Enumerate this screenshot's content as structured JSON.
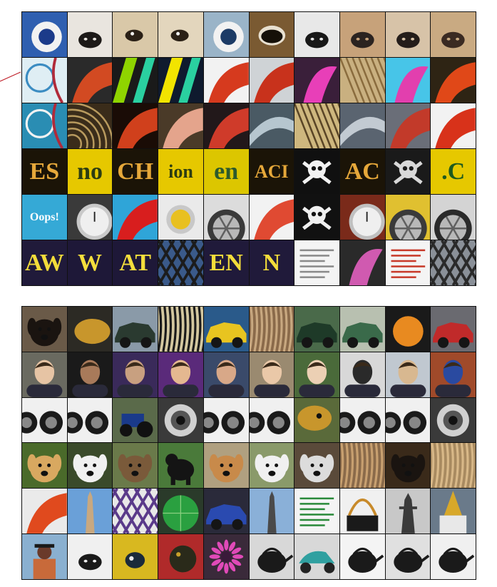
{
  "top_grid": {
    "rows": [
      [
        {
          "icon": "blue-eye-spot-icon",
          "bg": "#2f5fb0",
          "fg": "#f4f4f4"
        },
        {
          "icon": "dog-snout-icon",
          "bg": "#e9e5df",
          "fg": "#1d1a18"
        },
        {
          "icon": "dog-eye-icon",
          "bg": "#d9c8a8",
          "fg": "#2a2016"
        },
        {
          "icon": "dog-eye-icon",
          "bg": "#e3d6bd",
          "fg": "#2a2016"
        },
        {
          "icon": "blue-eye-spot-icon",
          "bg": "#9ab4c8",
          "fg": "#1c3b66"
        },
        {
          "icon": "open-mouth-icon",
          "bg": "#7a5a32",
          "fg": "#151008"
        },
        {
          "icon": "dog-nose-icon",
          "bg": "#e8e8e8",
          "fg": "#181818"
        },
        {
          "icon": "dog-nose-icon",
          "bg": "#c7a27a",
          "fg": "#2b2320"
        },
        {
          "icon": "dog-nose-icon",
          "bg": "#d7c3a8",
          "fg": "#241d1a"
        },
        {
          "icon": "dog-nose-icon",
          "bg": "#c9aa82",
          "fg": "#3a2a22"
        }
      ],
      [
        {
          "icon": "clock-face-icon",
          "bg": "#dfeef4",
          "fg": "#3b8cc2"
        },
        {
          "icon": "red-curve-icon",
          "bg": "#2a2a2a",
          "fg": "#d24a22"
        },
        {
          "icon": "color-stripes-icon",
          "bg": "#1a1a1a",
          "fg": "#8fd400"
        },
        {
          "icon": "color-stripes-icon",
          "bg": "#0f1a2e",
          "fg": "#f2e400"
        },
        {
          "icon": "red-curve-icon",
          "bg": "#f2f2f2",
          "fg": "#d63a1e"
        },
        {
          "icon": "red-curve-icon",
          "bg": "#cfd3d6",
          "fg": "#c8321c"
        },
        {
          "icon": "pink-petal-icon",
          "bg": "#3a1f3a",
          "fg": "#e83fb8"
        },
        {
          "icon": "straw-texture-icon",
          "bg": "#c9b080",
          "fg": "#8a6c3e"
        },
        {
          "icon": "pink-petal-icon",
          "bg": "#47c5e8",
          "fg": "#e23fae"
        },
        {
          "icon": "red-curve-icon",
          "bg": "#2e2414",
          "fg": "#e04818"
        }
      ],
      [
        {
          "icon": "clock-face-icon",
          "bg": "#2a8db3",
          "fg": "#f2f2f2"
        },
        {
          "icon": "coil-texture-icon",
          "bg": "#3a2c1a",
          "fg": "#b89a5e"
        },
        {
          "icon": "red-curve-icon",
          "bg": "#1a0c06",
          "fg": "#d0401c"
        },
        {
          "icon": "red-curve-icon",
          "bg": "#4a3a28",
          "fg": "#e4a48c"
        },
        {
          "icon": "red-curve-icon",
          "bg": "#22181a",
          "fg": "#cf3b2a"
        },
        {
          "icon": "metal-curve-icon",
          "bg": "#4a5a64",
          "fg": "#b6c6cf"
        },
        {
          "icon": "straw-texture-icon",
          "bg": "#ceb77e",
          "fg": "#5a4526"
        },
        {
          "icon": "metal-curve-icon",
          "bg": "#5a6470",
          "fg": "#c2cad2"
        },
        {
          "icon": "red-curve-icon",
          "bg": "#6a6e78",
          "fg": "#c23a2a"
        },
        {
          "icon": "red-curve-icon",
          "bg": "#f2f2f2",
          "fg": "#d8321a"
        }
      ],
      [
        {
          "icon": "letters-icon",
          "text": "ES",
          "bg": "#1b1407",
          "fg": "#e6a83a"
        },
        {
          "icon": "letters-icon",
          "text": "no",
          "bg": "#e6c800",
          "fg": "#2c3d12"
        },
        {
          "icon": "letters-icon",
          "text": "CH",
          "bg": "#1b1407",
          "fg": "#e6a83a"
        },
        {
          "icon": "letters-icon",
          "text": "ion",
          "bg": "#e6c800",
          "fg": "#2c3d12"
        },
        {
          "icon": "letters-icon",
          "text": "en",
          "bg": "#dcc600",
          "fg": "#2c5a2c"
        },
        {
          "icon": "letters-icon",
          "text": "ACI",
          "bg": "#1b1407",
          "fg": "#e6a83a"
        },
        {
          "icon": "skull-crossbones-icon",
          "bg": "#101010",
          "fg": "#f2f2f2"
        },
        {
          "icon": "letters-icon",
          "text": "AC",
          "bg": "#1b1407",
          "fg": "#e6a83a"
        },
        {
          "icon": "skull-crossbones-icon",
          "bg": "#1a1a1a",
          "fg": "#d8d8d8"
        },
        {
          "icon": "letters-icon",
          "text": ".C",
          "bg": "#e6c800",
          "fg": "#1e5a1e"
        }
      ],
      [
        {
          "icon": "letters-icon",
          "text": "Oops!",
          "bg": "#35a9d6",
          "fg": "#ffffff"
        },
        {
          "icon": "watch-face-icon",
          "bg": "#3a3a3a",
          "fg": "#c9c9c9"
        },
        {
          "icon": "red-curve-icon",
          "bg": "#2fa5d8",
          "fg": "#d81e1e"
        },
        {
          "icon": "yellow-disc-icon",
          "bg": "#eaeaea",
          "fg": "#e8c020"
        },
        {
          "icon": "wheel-rim-icon",
          "bg": "#dcdcdc",
          "fg": "#3a3a3a"
        },
        {
          "icon": "red-curve-icon",
          "bg": "#f2f2f2",
          "fg": "#e04a32"
        },
        {
          "icon": "skull-crossbones-icon",
          "bg": "#111111",
          "fg": "#f0f0f0"
        },
        {
          "icon": "watch-face-icon",
          "bg": "#7a2a1a",
          "fg": "#c0c0c0"
        },
        {
          "icon": "wheel-rim-icon",
          "bg": "#e0c030",
          "fg": "#3a3a3a"
        },
        {
          "icon": "wheel-rim-icon",
          "bg": "#d4d4d4",
          "fg": "#2a2a2a"
        }
      ],
      [
        {
          "icon": "letters-icon",
          "text": "AW",
          "bg": "#201a3a",
          "fg": "#f2dc3a"
        },
        {
          "icon": "letters-icon",
          "text": "W",
          "bg": "#1e1838",
          "fg": "#f4de3c"
        },
        {
          "icon": "letters-icon",
          "text": "AT",
          "bg": "#1e1838",
          "fg": "#f4de3c"
        },
        {
          "icon": "lattice-icon",
          "bg": "#3a5a8a",
          "fg": "#1c1c1c"
        },
        {
          "icon": "letters-icon",
          "text": "EN",
          "bg": "#201a3a",
          "fg": "#f2dc3a"
        },
        {
          "icon": "letters-icon",
          "text": "N",
          "bg": "#201a3a",
          "fg": "#f2dc3a"
        },
        {
          "icon": "text-block-icon",
          "bg": "#f4f4f4",
          "fg": "#8a8a8a"
        },
        {
          "icon": "pink-petal-icon",
          "bg": "#2a2a2a",
          "fg": "#d05ab0"
        },
        {
          "icon": "text-block-icon",
          "bg": "#f4f4f4",
          "fg": "#c83a2a"
        },
        {
          "icon": "lattice-icon",
          "bg": "#8a9098",
          "fg": "#2a2a2a"
        }
      ]
    ]
  },
  "bottom_grid": {
    "rows": [
      [
        {
          "icon": "dog-head-icon",
          "bg": "#6a5a48",
          "fg": "#1a1410"
        },
        {
          "icon": "gold-object-icon",
          "bg": "#2c2a24",
          "fg": "#c8962c"
        },
        {
          "icon": "car-side-icon",
          "bg": "#8a9aa8",
          "fg": "#2a3a30"
        },
        {
          "icon": "fur-texture-icon",
          "bg": "#d4c8a0",
          "fg": "#1a1a1a"
        },
        {
          "icon": "car-side-icon",
          "bg": "#2a5a8a",
          "fg": "#e8c420"
        },
        {
          "icon": "fur-texture-icon",
          "bg": "#8a6a4a",
          "fg": "#c8a880"
        },
        {
          "icon": "car-side-icon",
          "bg": "#4a6a4a",
          "fg": "#1e3a28"
        },
        {
          "icon": "car-side-icon",
          "bg": "#b8c0b0",
          "fg": "#3a6a4a"
        },
        {
          "icon": "fruit-icon",
          "bg": "#1a1a1a",
          "fg": "#e88a20"
        },
        {
          "icon": "car-side-icon",
          "bg": "#6a6a70",
          "fg": "#c02a2a"
        }
      ],
      [
        {
          "icon": "person-portrait-icon",
          "bg": "#6a6a60",
          "fg": "#e6c4a4"
        },
        {
          "icon": "person-portrait-icon",
          "bg": "#1a1a1a",
          "fg": "#a87a5a"
        },
        {
          "icon": "person-portrait-icon",
          "bg": "#3a2a5a",
          "fg": "#c8a080"
        },
        {
          "icon": "person-portrait-icon",
          "bg": "#5a2a7a",
          "fg": "#e4b890"
        },
        {
          "icon": "person-portrait-icon",
          "bg": "#3a4a6a",
          "fg": "#d8a888"
        },
        {
          "icon": "person-portrait-icon",
          "bg": "#9a8a70",
          "fg": "#eac8a8"
        },
        {
          "icon": "person-portrait-icon",
          "bg": "#4a6a3a",
          "fg": "#ecd0b4"
        },
        {
          "icon": "person-portrait-icon",
          "bg": "#d8d8d8",
          "fg": "#2a2a2a"
        },
        {
          "icon": "person-portrait-icon",
          "bg": "#c0c8d0",
          "fg": "#d8b890"
        },
        {
          "icon": "person-portrait-icon",
          "bg": "#a04a2a",
          "fg": "#2a4aa0"
        }
      ],
      [
        {
          "icon": "lens-row-icon",
          "bg": "#f0f0f0",
          "fg": "#1a1a1a"
        },
        {
          "icon": "lens-row-icon",
          "bg": "#f0f0f0",
          "fg": "#1a1a1a"
        },
        {
          "icon": "tractor-icon",
          "bg": "#5a6a4a",
          "fg": "#1a3a8a"
        },
        {
          "icon": "camera-lens-icon",
          "bg": "#3a3a3a",
          "fg": "#d0d0d0"
        },
        {
          "icon": "lens-row-icon",
          "bg": "#f0f0f0",
          "fg": "#1a1a1a"
        },
        {
          "icon": "lens-row-icon",
          "bg": "#f0f0f0",
          "fg": "#1a1a1a"
        },
        {
          "icon": "snake-head-icon",
          "bg": "#5a6a3a",
          "fg": "#c8962c"
        },
        {
          "icon": "lens-row-icon",
          "bg": "#f0f0f0",
          "fg": "#1a1a1a"
        },
        {
          "icon": "lens-row-icon",
          "bg": "#f0f0f0",
          "fg": "#1a1a1a"
        },
        {
          "icon": "camera-lens-icon",
          "bg": "#3a3a3a",
          "fg": "#d0d0d0"
        }
      ],
      [
        {
          "icon": "dog-head-icon",
          "bg": "#4a6a2a",
          "fg": "#d8a860"
        },
        {
          "icon": "dog-head-icon",
          "bg": "#3a4a2a",
          "fg": "#f0f0f0"
        },
        {
          "icon": "dog-head-icon",
          "bg": "#6a7a4a",
          "fg": "#7a5a3a"
        },
        {
          "icon": "bear-icon",
          "bg": "#4a7a3a",
          "fg": "#141414"
        },
        {
          "icon": "dog-head-icon",
          "bg": "#b0a080",
          "fg": "#c88a4a"
        },
        {
          "icon": "dog-head-icon",
          "bg": "#8a9a6a",
          "fg": "#f0f0f0"
        },
        {
          "icon": "dog-head-icon",
          "bg": "#5a4a3a",
          "fg": "#dcdcdc"
        },
        {
          "icon": "fur-texture-icon",
          "bg": "#8a6a4a",
          "fg": "#c8a070"
        },
        {
          "icon": "dog-head-icon",
          "bg": "#3a2a1a",
          "fg": "#1a1410"
        },
        {
          "icon": "fur-texture-icon",
          "bg": "#a88a60",
          "fg": "#d8b888"
        }
      ],
      [
        {
          "icon": "red-curve-icon",
          "bg": "#eaeaea",
          "fg": "#e04a1e"
        },
        {
          "icon": "obelisk-icon",
          "bg": "#6aa0d8",
          "fg": "#c8a880"
        },
        {
          "icon": "lattice-icon",
          "bg": "#e8e8e8",
          "fg": "#5a3a8a"
        },
        {
          "icon": "round-window-icon",
          "bg": "#2a3a2a",
          "fg": "#2aa040"
        },
        {
          "icon": "car-side-icon",
          "bg": "#2a2a3a",
          "fg": "#2a4ab0"
        },
        {
          "icon": "obelisk-icon",
          "bg": "#8ab0d8",
          "fg": "#4a4a4a"
        },
        {
          "icon": "text-block-icon",
          "bg": "#f4f4f4",
          "fg": "#2a8a3a"
        },
        {
          "icon": "basket-icon",
          "bg": "#f0f0f0",
          "fg": "#c88a2a"
        },
        {
          "icon": "tower-icon",
          "bg": "#c8c8c8",
          "fg": "#3a3a3a"
        },
        {
          "icon": "stupa-icon",
          "bg": "#6a7a8a",
          "fg": "#d8a82a"
        }
      ],
      [
        {
          "icon": "person-back-icon",
          "bg": "#8ab0d0",
          "fg": "#6a3a2a"
        },
        {
          "icon": "dog-snout-icon",
          "bg": "#f0f0f0",
          "fg": "#1a1a1a"
        },
        {
          "icon": "bird-icon",
          "bg": "#d8b820",
          "fg": "#1a2a3a"
        },
        {
          "icon": "ladybug-icon",
          "bg": "#b02a2a",
          "fg": "#2a2a1a"
        },
        {
          "icon": "daisy-icon",
          "bg": "#3a2a3a",
          "fg": "#e04ab8"
        },
        {
          "icon": "teapot-icon",
          "bg": "#d8d8d8",
          "fg": "#1a1a1a"
        },
        {
          "icon": "scooter-icon",
          "bg": "#d8d8d8",
          "fg": "#30a0a0"
        },
        {
          "icon": "teapot-icon",
          "bg": "#f4f4f4",
          "fg": "#1a1a1a"
        },
        {
          "icon": "teapot-icon",
          "bg": "#e0e0e0",
          "fg": "#1a1a1a"
        },
        {
          "icon": "teapot-icon",
          "bg": "#f0f0f0",
          "fg": "#1a1a1a"
        }
      ]
    ]
  },
  "pointer": {
    "color": "#c0202a"
  }
}
